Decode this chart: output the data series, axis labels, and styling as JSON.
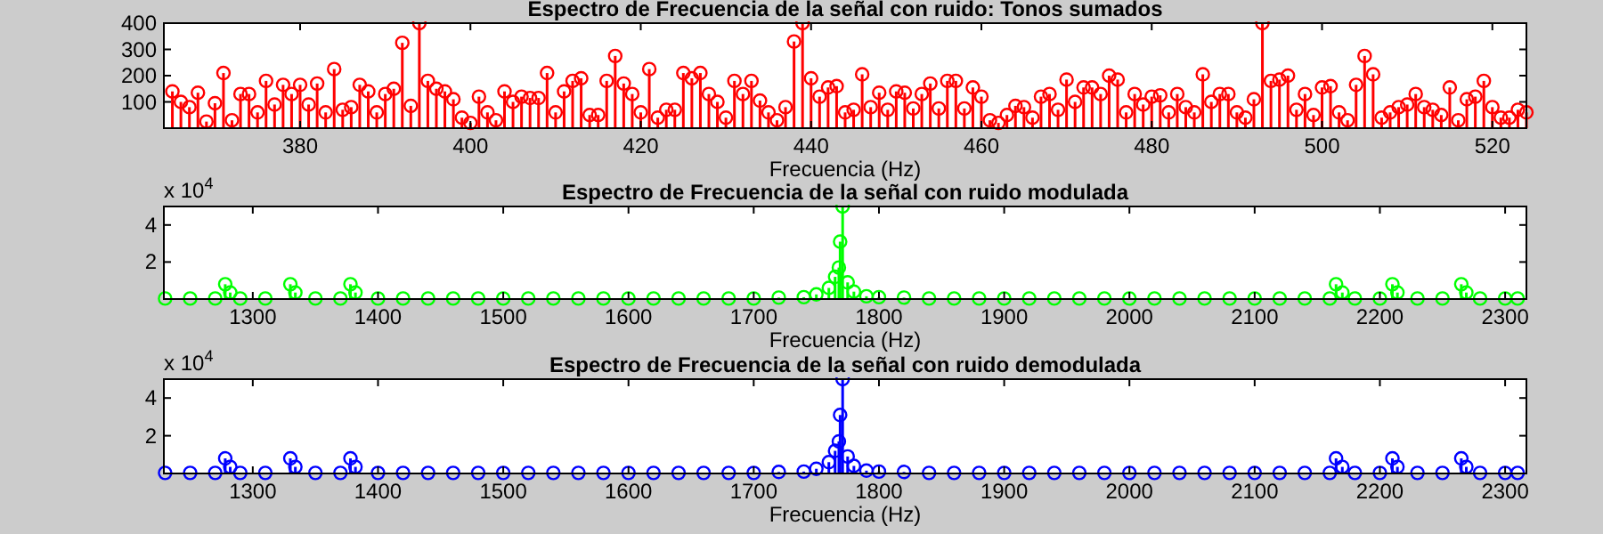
{
  "chart_data": [
    {
      "type": "lollipop",
      "title": "Espectro de Frecuencia de la señal con ruido: Tonos sumados",
      "xlabel": "Frecuencia (Hz)",
      "marker": "circle",
      "xlim": [
        364,
        524
      ],
      "xticks": [
        380,
        400,
        420,
        440,
        460,
        480,
        500,
        520
      ],
      "ylim": [
        0,
        400
      ],
      "yticks": [
        100,
        200,
        300,
        400
      ],
      "series": [
        {
          "color": "#ff0000",
          "x": [
            365,
            366,
            367,
            368,
            369,
            370,
            371,
            372,
            373,
            374,
            375,
            376,
            377,
            378,
            379,
            380,
            381,
            382,
            383,
            384,
            385,
            386,
            387,
            388,
            389,
            390,
            391,
            392,
            393,
            394,
            395,
            396,
            397,
            398,
            399,
            400,
            401,
            402,
            403,
            404,
            405,
            406,
            407,
            408,
            409,
            410,
            411,
            412,
            413,
            414,
            415,
            416,
            417,
            418,
            419,
            420,
            421,
            422,
            423,
            424,
            425,
            426,
            427,
            428,
            429,
            430,
            431,
            432,
            433,
            434,
            435,
            436,
            437,
            438,
            439,
            440,
            441,
            442,
            443,
            444,
            445,
            446,
            447,
            448,
            449,
            450,
            451,
            452,
            453,
            454,
            455,
            456,
            457,
            458,
            459,
            460,
            461,
            462,
            463,
            464,
            465,
            466,
            467,
            468,
            469,
            470,
            471,
            472,
            473,
            474,
            475,
            476,
            477,
            478,
            479,
            480,
            481,
            482,
            483,
            484,
            485,
            486,
            487,
            488,
            489,
            490,
            491,
            492,
            493,
            494,
            495,
            496,
            497,
            498,
            499,
            500,
            501,
            502,
            503,
            504,
            505,
            506,
            507,
            508,
            509,
            510,
            511,
            512,
            513,
            514,
            515,
            516,
            517,
            518,
            519,
            520,
            521,
            522,
            523,
            524
          ],
          "values": [
            140,
            100,
            80,
            135,
            25,
            95,
            210,
            30,
            130,
            130,
            60,
            180,
            90,
            165,
            130,
            165,
            90,
            170,
            60,
            225,
            70,
            80,
            165,
            140,
            60,
            130,
            150,
            325,
            85,
            400,
            180,
            150,
            140,
            110,
            40,
            20,
            120,
            60,
            30,
            140,
            100,
            120,
            115,
            115,
            210,
            60,
            140,
            180,
            190,
            50,
            50,
            180,
            275,
            170,
            130,
            60,
            225,
            40,
            70,
            70,
            210,
            190,
            210,
            130,
            100,
            40,
            180,
            130,
            180,
            105,
            60,
            30,
            80,
            330,
            400,
            190,
            120,
            155,
            160,
            60,
            70,
            205,
            80,
            135,
            70,
            140,
            135,
            75,
            130,
            170,
            75,
            180,
            180,
            75,
            155,
            120,
            30,
            20,
            50,
            85,
            80,
            40,
            120,
            130,
            70,
            185,
            100,
            155,
            155,
            130,
            200,
            185,
            60,
            130,
            90,
            120,
            125,
            60,
            130,
            80,
            60,
            205,
            100,
            130,
            130,
            60,
            40,
            110,
            400,
            180,
            185,
            200,
            70,
            130,
            50,
            155,
            160,
            60,
            30,
            165,
            275,
            205,
            40,
            60,
            80,
            90,
            130,
            80,
            70,
            50,
            155,
            30,
            110,
            120,
            180,
            80,
            40,
            40,
            70,
            60
          ]
        }
      ]
    },
    {
      "type": "lollipop",
      "title": "Espectro de Frecuencia de la señal con ruido modulada",
      "xlabel": "Frecuencia (Hz)",
      "annotations": [
        "x 10$^{4}$"
      ],
      "marker": "circle",
      "xlim": [
        1229,
        2317
      ],
      "xticks": [
        1300,
        1400,
        1500,
        1600,
        1700,
        1800,
        1900,
        2000,
        2100,
        2200,
        2300
      ],
      "ylim": [
        0,
        5
      ],
      "yticks": [
        2,
        4
      ],
      "series": [
        {
          "color": "#00ff00",
          "x": [
            1230,
            1250,
            1270,
            1278,
            1282,
            1290,
            1310,
            1330,
            1334,
            1350,
            1370,
            1378,
            1382,
            1400,
            1420,
            1440,
            1460,
            1480,
            1500,
            1520,
            1540,
            1560,
            1580,
            1600,
            1620,
            1640,
            1660,
            1680,
            1700,
            1720,
            1740,
            1750,
            1760,
            1765,
            1768,
            1769,
            1771,
            1775,
            1780,
            1790,
            1800,
            1820,
            1840,
            1860,
            1880,
            1900,
            1920,
            1940,
            1960,
            1980,
            2000,
            2020,
            2040,
            2060,
            2080,
            2100,
            2120,
            2140,
            2160,
            2165,
            2170,
            2180,
            2200,
            2210,
            2214,
            2230,
            2250,
            2265,
            2269,
            2280,
            2300,
            2310
          ],
          "values": [
            0.03,
            0.03,
            0.03,
            0.8,
            0.35,
            0.03,
            0.03,
            0.8,
            0.35,
            0.03,
            0.03,
            0.8,
            0.35,
            0.03,
            0.03,
            0.03,
            0.03,
            0.03,
            0.03,
            0.03,
            0.03,
            0.03,
            0.03,
            0.03,
            0.03,
            0.03,
            0.03,
            0.03,
            0.03,
            0.08,
            0.1,
            0.25,
            0.6,
            1.2,
            1.7,
            3.1,
            5,
            0.9,
            0.4,
            0.15,
            0.1,
            0.08,
            0.03,
            0.03,
            0.03,
            0.03,
            0.03,
            0.03,
            0.03,
            0.03,
            0.03,
            0.03,
            0.03,
            0.03,
            0.03,
            0.03,
            0.03,
            0.03,
            0.03,
            0.8,
            0.35,
            0.03,
            0.03,
            0.8,
            0.35,
            0.03,
            0.03,
            0.8,
            0.35,
            0.03,
            0.03,
            0.03
          ]
        }
      ]
    },
    {
      "type": "lollipop",
      "title": "Espectro de Frecuencia de la señal con ruido demodulada",
      "xlabel": "Frecuencia (Hz)",
      "annotations": [
        "x 10$^{4}$"
      ],
      "marker": "circle",
      "xlim": [
        1229,
        2317
      ],
      "xticks": [
        1300,
        1400,
        1500,
        1600,
        1700,
        1800,
        1900,
        2000,
        2100,
        2200,
        2300
      ],
      "ylim": [
        0,
        5
      ],
      "yticks": [
        2,
        4
      ],
      "series": [
        {
          "color": "#0000ff",
          "x": [
            1230,
            1250,
            1270,
            1278,
            1282,
            1290,
            1310,
            1330,
            1334,
            1350,
            1370,
            1378,
            1382,
            1400,
            1420,
            1440,
            1460,
            1480,
            1500,
            1520,
            1540,
            1560,
            1580,
            1600,
            1620,
            1640,
            1660,
            1680,
            1700,
            1720,
            1740,
            1750,
            1760,
            1765,
            1768,
            1769,
            1771,
            1775,
            1780,
            1790,
            1800,
            1820,
            1840,
            1860,
            1880,
            1900,
            1920,
            1940,
            1960,
            1980,
            2000,
            2020,
            2040,
            2060,
            2080,
            2100,
            2120,
            2140,
            2160,
            2165,
            2170,
            2180,
            2200,
            2210,
            2214,
            2230,
            2250,
            2265,
            2269,
            2280,
            2300,
            2310
          ],
          "values": [
            0.03,
            0.03,
            0.03,
            0.8,
            0.35,
            0.03,
            0.03,
            0.8,
            0.35,
            0.03,
            0.03,
            0.8,
            0.35,
            0.03,
            0.03,
            0.03,
            0.03,
            0.03,
            0.03,
            0.03,
            0.03,
            0.03,
            0.03,
            0.03,
            0.03,
            0.03,
            0.03,
            0.03,
            0.03,
            0.08,
            0.1,
            0.25,
            0.6,
            1.2,
            1.7,
            3.1,
            5,
            0.9,
            0.4,
            0.15,
            0.1,
            0.08,
            0.03,
            0.03,
            0.03,
            0.03,
            0.03,
            0.03,
            0.03,
            0.03,
            0.03,
            0.03,
            0.03,
            0.03,
            0.03,
            0.03,
            0.03,
            0.03,
            0.03,
            0.8,
            0.35,
            0.03,
            0.03,
            0.8,
            0.35,
            0.03,
            0.03,
            0.8,
            0.35,
            0.03,
            0.03,
            0.03
          ]
        }
      ]
    }
  ]
}
